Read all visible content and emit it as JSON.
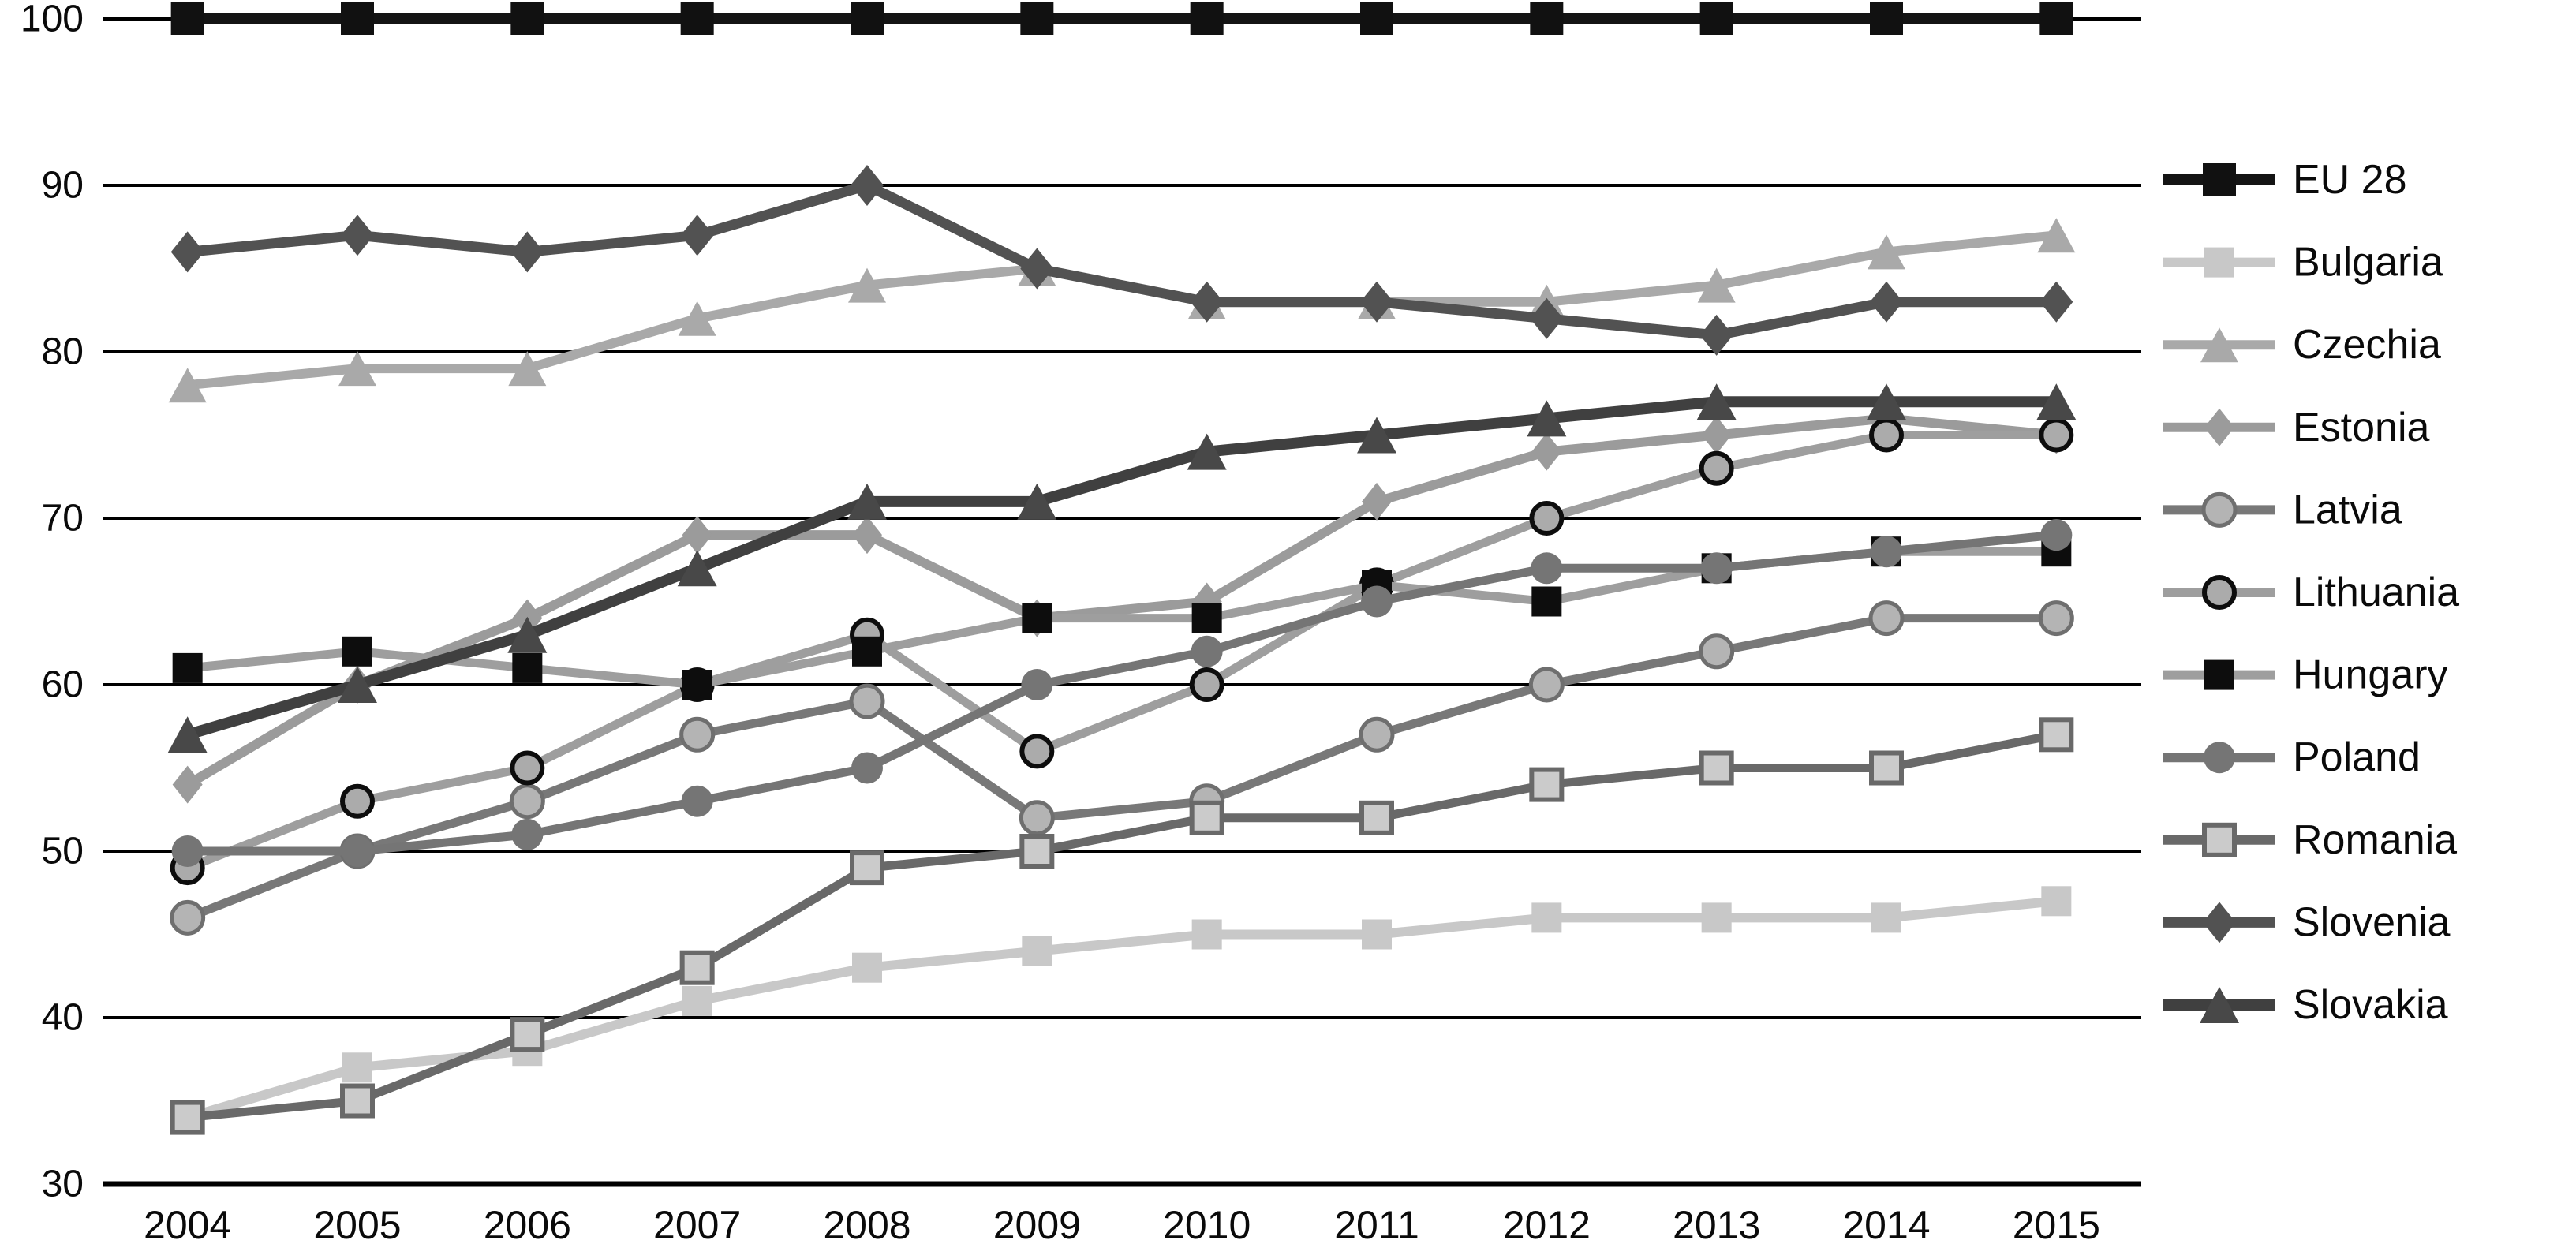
{
  "figure": {
    "background": "#ffffff",
    "axis_text_color": "#0a0a0a",
    "gridline_color": "#000000"
  },
  "chart_data": {
    "type": "line",
    "title": "",
    "xlabel": "",
    "ylabel": "",
    "x_categories": [
      "2004",
      "2005",
      "2006",
      "2007",
      "2008",
      "2009",
      "2010",
      "2011",
      "2012",
      "2013",
      "2014",
      "2015"
    ],
    "y_ticks": [
      100,
      90,
      80,
      70,
      60,
      50,
      40,
      30
    ],
    "ylim": [
      30,
      100
    ],
    "grid": true,
    "legend_position": "right",
    "series": [
      {
        "name": "EU 28",
        "values": [
          100,
          100,
          100,
          100,
          100,
          100,
          100,
          100,
          100,
          100,
          100,
          100
        ],
        "line_color": "#141414",
        "line_width": 14,
        "marker": {
          "shape": "square",
          "fill": "#111111",
          "stroke": "none",
          "stroke_width": 0,
          "size": 42
        }
      },
      {
        "name": "Bulgaria",
        "values": [
          34,
          37,
          38,
          41,
          43,
          44,
          45,
          45,
          46,
          46,
          46,
          47
        ],
        "line_color": "#c8c8c8",
        "line_width": 12,
        "marker": {
          "shape": "square",
          "fill": "#c8c8c8",
          "stroke": "none",
          "stroke_width": 0,
          "size": 38
        }
      },
      {
        "name": "Czechia",
        "values": [
          78,
          79,
          79,
          82,
          84,
          85,
          83,
          83,
          83,
          84,
          86,
          87
        ],
        "line_color": "#a9a9a9",
        "line_width": 12,
        "marker": {
          "shape": "triangle",
          "fill": "#a9a9a9",
          "stroke": "none",
          "stroke_width": 0,
          "size": 42
        }
      },
      {
        "name": "Estonia",
        "values": [
          54,
          60,
          64,
          69,
          69,
          64,
          65,
          71,
          74,
          75,
          76,
          75
        ],
        "line_color": "#9b9b9b",
        "line_width": 12,
        "marker": {
          "shape": "diamond",
          "fill": "#9b9b9b",
          "stroke": "none",
          "stroke_width": 0,
          "size": 38
        }
      },
      {
        "name": "Latvia",
        "values": [
          46,
          50,
          53,
          57,
          59,
          52,
          53,
          57,
          60,
          62,
          64,
          64
        ],
        "line_color": "#787878",
        "line_width": 11,
        "marker": {
          "shape": "circle",
          "fill": "#b4b4b4",
          "stroke": "#6f6f6f",
          "stroke_width": 5,
          "size": 40
        }
      },
      {
        "name": "Lithuania",
        "values": [
          49,
          53,
          55,
          60,
          63,
          56,
          60,
          66,
          70,
          73,
          75,
          75
        ],
        "line_color": "#9e9e9e",
        "line_width": 11,
        "marker": {
          "shape": "circle",
          "fill": "#ababab",
          "stroke": "#0d0d0d",
          "stroke_width": 6,
          "size": 38
        }
      },
      {
        "name": "Hungary",
        "values": [
          61,
          62,
          61,
          60,
          62,
          64,
          64,
          66,
          65,
          67,
          68,
          68
        ],
        "line_color": "#9e9e9e",
        "line_width": 11,
        "marker": {
          "shape": "square",
          "fill": "#0d0d0d",
          "stroke": "none",
          "stroke_width": 0,
          "size": 38
        }
      },
      {
        "name": "Poland",
        "values": [
          50,
          50,
          51,
          53,
          55,
          60,
          62,
          65,
          67,
          67,
          68,
          69
        ],
        "line_color": "#757575",
        "line_width": 11,
        "marker": {
          "shape": "circle",
          "fill": "#757575",
          "stroke": "none",
          "stroke_width": 0,
          "size": 40
        }
      },
      {
        "name": "Romania",
        "values": [
          34,
          35,
          39,
          43,
          49,
          50,
          52,
          52,
          54,
          55,
          55,
          57
        ],
        "line_color": "#696969",
        "line_width": 11,
        "marker": {
          "shape": "square",
          "fill": "#cbcbcb",
          "stroke": "#696969",
          "stroke_width": 6,
          "size": 38
        }
      },
      {
        "name": "Slovenia",
        "values": [
          86,
          87,
          86,
          87,
          90,
          85,
          83,
          83,
          82,
          81,
          83,
          83
        ],
        "line_color": "#525252",
        "line_width": 13,
        "marker": {
          "shape": "diamond",
          "fill": "#525252",
          "stroke": "none",
          "stroke_width": 0,
          "size": 42
        }
      },
      {
        "name": "Slovakia",
        "values": [
          57,
          60,
          63,
          67,
          71,
          71,
          74,
          75,
          76,
          77,
          77,
          77
        ],
        "line_color": "#404040",
        "line_width": 14,
        "marker": {
          "shape": "triangle",
          "fill": "#484848",
          "stroke": "none",
          "stroke_width": 0,
          "size": 44
        }
      }
    ]
  }
}
